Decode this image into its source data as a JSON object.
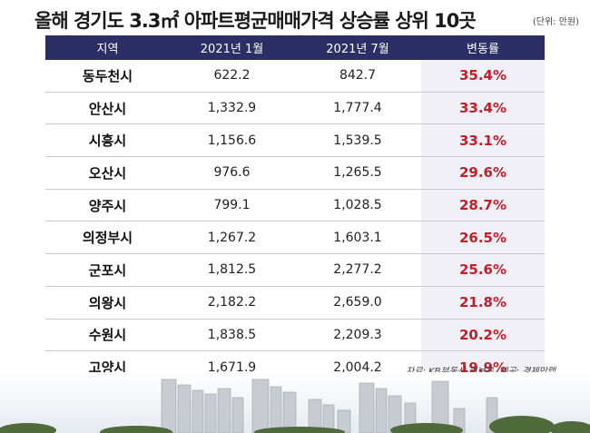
{
  "title": "올해 경기도 3.3㎡ 아파트평균매매가격 상승률 상위 10곳",
  "unit_note": "(단위: 만원)",
  "source": "자료: KB부동산 리브온, 제공: 경제만랩",
  "chart_data": {
    "type": "table",
    "columns": [
      "지역",
      "2021년 1월",
      "2021년 7월",
      "변동률"
    ],
    "rows": [
      [
        "동두천시",
        "622.2",
        "842.7",
        "35.4%"
      ],
      [
        "안산시",
        "1,332.9",
        "1,777.4",
        "33.4%"
      ],
      [
        "시흥시",
        "1,156.6",
        "1,539.5",
        "33.1%"
      ],
      [
        "오산시",
        "976.6",
        "1,265.5",
        "29.6%"
      ],
      [
        "양주시",
        "799.1",
        "1,028.5",
        "28.7%"
      ],
      [
        "의정부시",
        "1,267.2",
        "1,603.1",
        "26.5%"
      ],
      [
        "군포시",
        "1,812.5",
        "2,277.2",
        "25.6%"
      ],
      [
        "의왕시",
        "2,182.2",
        "2,659.0",
        "21.8%"
      ],
      [
        "수원시",
        "1,838.5",
        "2,209.3",
        "20.2%"
      ],
      [
        "고양시",
        "1,671.9",
        "2,004.2",
        "19.9%"
      ]
    ]
  },
  "colors": {
    "header_bg": "#2c2f66",
    "rate_text": "#c31e2b",
    "rate_bg": "#f1f0f6"
  }
}
